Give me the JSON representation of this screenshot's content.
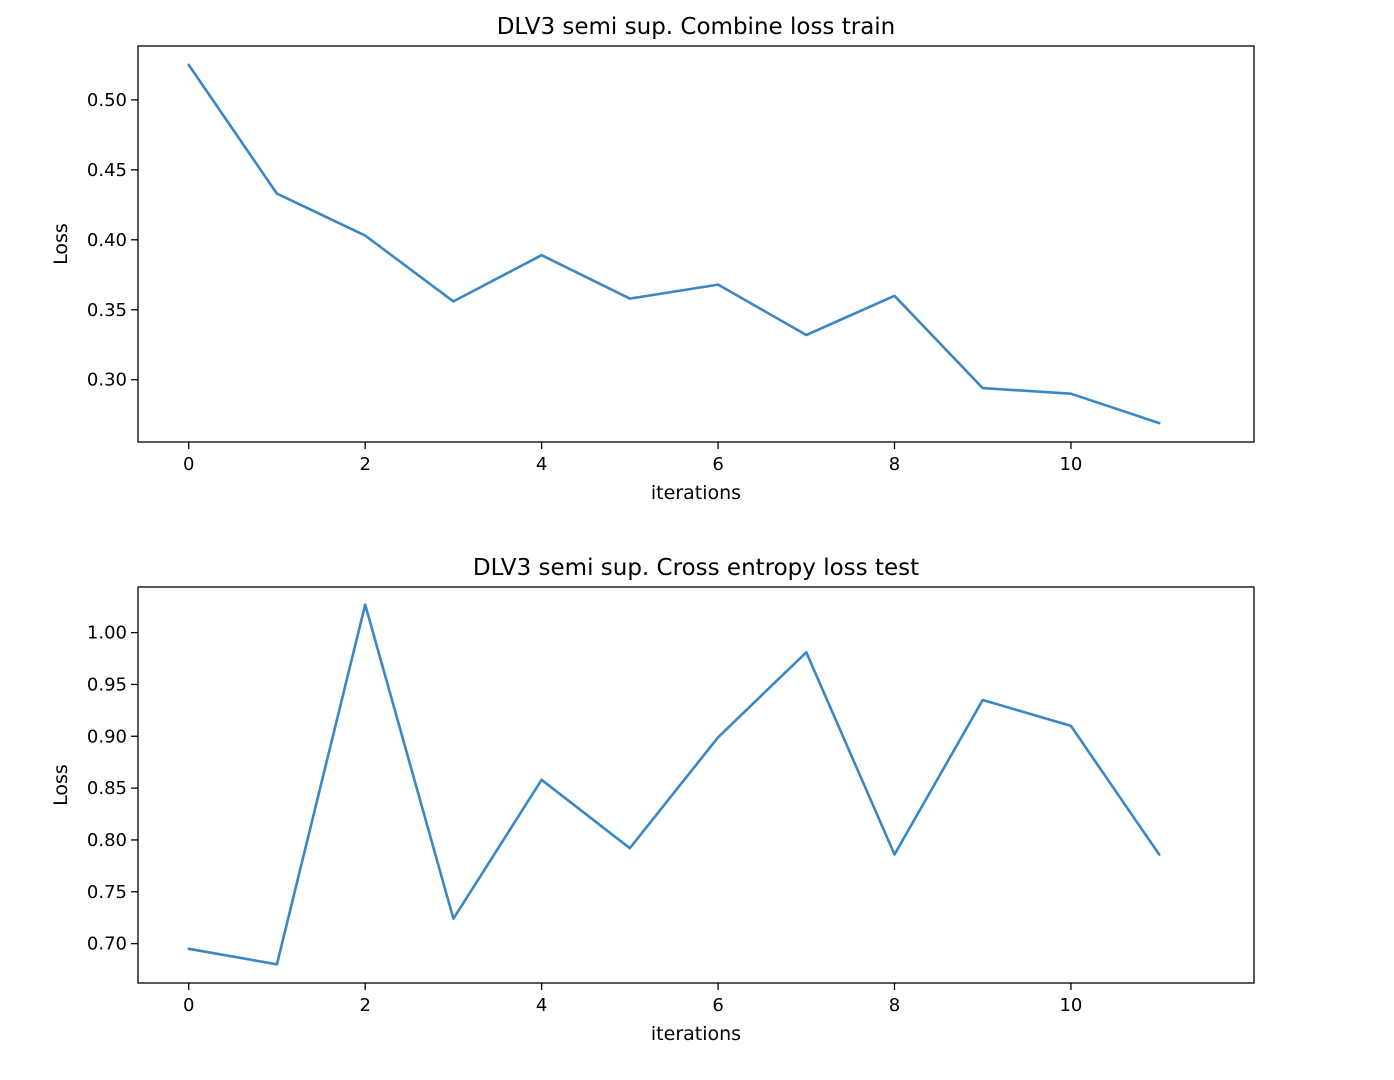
{
  "chart_data": [
    {
      "type": "line",
      "title": "DLV3 semi sup. Combine loss train",
      "xlabel": "iterations",
      "ylabel": "Loss",
      "xlim": [
        -0.575,
        12.075
      ],
      "ylim": [
        0.2555,
        0.5385
      ],
      "xticks": [
        0,
        2,
        4,
        6,
        8,
        10
      ],
      "xtick_labels": [
        "0",
        "2",
        "4",
        "6",
        "8",
        "10"
      ],
      "yticks": [
        0.3,
        0.35,
        0.4,
        0.45,
        0.5
      ],
      "ytick_labels": [
        "0.30",
        "0.35",
        "0.40",
        "0.45",
        "0.50"
      ],
      "grid": false,
      "color": "#3a87c4",
      "x": [
        0,
        1,
        2,
        3,
        4,
        5,
        6,
        7,
        8,
        9,
        10,
        11
      ],
      "y": [
        0.525,
        0.433,
        0.403,
        0.356,
        0.389,
        0.358,
        0.368,
        0.332,
        0.36,
        0.294,
        0.29,
        0.269
      ]
    },
    {
      "type": "line",
      "title": "DLV3 semi sup. Cross entropy loss test",
      "xlabel": "iterations",
      "ylabel": "Loss",
      "xlim": [
        -0.575,
        12.075
      ],
      "ylim": [
        0.662,
        1.044
      ],
      "xticks": [
        0,
        2,
        4,
        6,
        8,
        10
      ],
      "xtick_labels": [
        "0",
        "2",
        "4",
        "6",
        "8",
        "10"
      ],
      "yticks": [
        0.7,
        0.75,
        0.8,
        0.85,
        0.9,
        0.95,
        1.0
      ],
      "ytick_labels": [
        "0.70",
        "0.75",
        "0.80",
        "0.85",
        "0.90",
        "0.95",
        "1.00"
      ],
      "grid": false,
      "color": "#3a87c4",
      "x": [
        0,
        1,
        2,
        3,
        4,
        5,
        6,
        7,
        8,
        9,
        10,
        11
      ],
      "y": [
        0.695,
        0.68,
        1.027,
        0.724,
        0.858,
        0.792,
        0.899,
        0.981,
        0.786,
        0.935,
        0.91,
        0.786
      ]
    }
  ]
}
